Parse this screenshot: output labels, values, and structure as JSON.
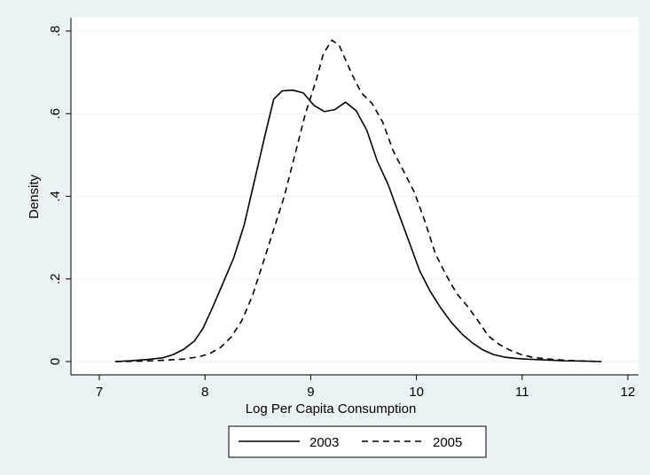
{
  "chart_data": {
    "type": "line",
    "xlabel": "Log Per Capita Consumption",
    "ylabel": "Density",
    "xlim": [
      7,
      12
    ],
    "ylim": [
      0,
      0.8
    ],
    "xticks": [
      7,
      8,
      9,
      10,
      11,
      12
    ],
    "xtick_labels": [
      "7",
      "8",
      "9",
      "10",
      "11",
      "12"
    ],
    "yticks": [
      0,
      0.2,
      0.4,
      0.6,
      0.8
    ],
    "ytick_labels": [
      "0",
      ".2",
      ".4",
      ".6",
      ".8"
    ],
    "grid": true,
    "legend_position": "bottom",
    "colors": {
      "background": "#eaf2f3",
      "plot_area": "#ffffff",
      "line": "#000000",
      "grid": "#eaf2f3"
    },
    "series": [
      {
        "name": "2003",
        "style": "solid",
        "x": [
          7.15,
          7.3,
          7.45,
          7.6,
          7.7,
          7.8,
          7.9,
          7.98,
          8.07,
          8.17,
          8.27,
          8.37,
          8.47,
          8.57,
          8.65,
          8.73,
          8.83,
          8.93,
          9.03,
          9.13,
          9.23,
          9.33,
          9.43,
          9.53,
          9.63,
          9.73,
          9.83,
          9.93,
          10.03,
          10.13,
          10.23,
          10.33,
          10.43,
          10.53,
          10.63,
          10.73,
          10.83,
          10.93,
          11.03,
          11.2,
          11.4,
          11.6,
          11.75
        ],
        "y": [
          0.0,
          0.002,
          0.005,
          0.009,
          0.017,
          0.03,
          0.05,
          0.08,
          0.13,
          0.19,
          0.25,
          0.33,
          0.44,
          0.55,
          0.635,
          0.655,
          0.657,
          0.65,
          0.62,
          0.605,
          0.61,
          0.628,
          0.607,
          0.56,
          0.485,
          0.43,
          0.36,
          0.29,
          0.22,
          0.17,
          0.13,
          0.095,
          0.067,
          0.045,
          0.028,
          0.017,
          0.011,
          0.008,
          0.006,
          0.004,
          0.002,
          0.001,
          0.0
        ]
      },
      {
        "name": "2005",
        "style": "dashed",
        "x": [
          7.15,
          7.4,
          7.6,
          7.8,
          7.95,
          8.05,
          8.15,
          8.25,
          8.35,
          8.45,
          8.55,
          8.65,
          8.75,
          8.85,
          8.95,
          9.05,
          9.12,
          9.2,
          9.27,
          9.33,
          9.4,
          9.48,
          9.58,
          9.68,
          9.78,
          9.88,
          9.98,
          10.08,
          10.18,
          10.28,
          10.38,
          10.48,
          10.58,
          10.68,
          10.78,
          10.88,
          10.98,
          11.1,
          11.3,
          11.5,
          11.75
        ],
        "y": [
          0.0,
          0.001,
          0.003,
          0.006,
          0.012,
          0.02,
          0.035,
          0.06,
          0.1,
          0.16,
          0.24,
          0.32,
          0.4,
          0.5,
          0.6,
          0.68,
          0.745,
          0.778,
          0.765,
          0.73,
          0.69,
          0.65,
          0.625,
          0.58,
          0.51,
          0.46,
          0.41,
          0.34,
          0.26,
          0.21,
          0.165,
          0.135,
          0.1,
          0.062,
          0.042,
          0.028,
          0.018,
          0.01,
          0.005,
          0.002,
          0.0
        ]
      }
    ]
  }
}
